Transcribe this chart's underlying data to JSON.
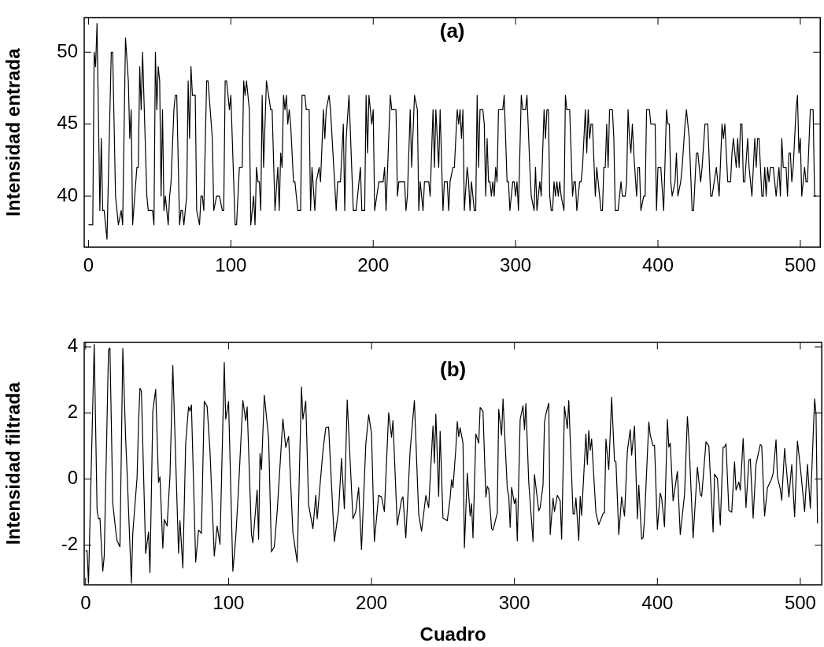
{
  "chart_data": [
    {
      "type": "line",
      "title": "(a)",
      "ylabel": "Intensidad entrada",
      "color": "#000000",
      "x": [
        0,
        3,
        4,
        5,
        6,
        8,
        9,
        10,
        11,
        13,
        16,
        17,
        19,
        21,
        23,
        24,
        26,
        28,
        29,
        30,
        31,
        34,
        35,
        36,
        37,
        38,
        41,
        42,
        45,
        46,
        47,
        48,
        49,
        50,
        51,
        52,
        53,
        54,
        56,
        57,
        58,
        60,
        61,
        62,
        64,
        65,
        66,
        67,
        69,
        70,
        71,
        72,
        73,
        75,
        76,
        78,
        79,
        80,
        81,
        83,
        84,
        87,
        88,
        90,
        92,
        94,
        95,
        96,
        97,
        99,
        100,
        103,
        104,
        106,
        108,
        109,
        110,
        111,
        113,
        114,
        116,
        117,
        118,
        119,
        120,
        121,
        122,
        123,
        125,
        128,
        129,
        131,
        133,
        134,
        135,
        136,
        137,
        138,
        139,
        140,
        141,
        142,
        144,
        145,
        147,
        149,
        150,
        152,
        153,
        155,
        156,
        157,
        159,
        160,
        162,
        163,
        165,
        166,
        167,
        169,
        170,
        174,
        175,
        177,
        179,
        180,
        181,
        183,
        186,
        188,
        190,
        191,
        192,
        194,
        195,
        196,
        197,
        198,
        199,
        200,
        201,
        204,
        207,
        208,
        209,
        212,
        213,
        216,
        217,
        218,
        222,
        223,
        224,
        226,
        227,
        229,
        231,
        232,
        233,
        235,
        236,
        239,
        240,
        242,
        243,
        244,
        245,
        246,
        247,
        249,
        250,
        252,
        253,
        254,
        256,
        257,
        259,
        260,
        261,
        262,
        263,
        264,
        266,
        267,
        268,
        269,
        271,
        272,
        273,
        274,
        275,
        277,
        278,
        279,
        280,
        281,
        282,
        283,
        284,
        285,
        286,
        287,
        288,
        291,
        292,
        294,
        295,
        296,
        298,
        299,
        300,
        301,
        302,
        304,
        305,
        307,
        308,
        310,
        311,
        313,
        314,
        315,
        317,
        318,
        320,
        321,
        322,
        323,
        324,
        325,
        326,
        327,
        328,
        329,
        330,
        331,
        332,
        334,
        335,
        336,
        338,
        340,
        341,
        342,
        343,
        345,
        346,
        347,
        349,
        350,
        351,
        352,
        353,
        354,
        356,
        357,
        358,
        360,
        361,
        362,
        363,
        364,
        365,
        366,
        368,
        369,
        370,
        372,
        374,
        375,
        377,
        378,
        379,
        380,
        381,
        382,
        383,
        385,
        386,
        387,
        388,
        390,
        391,
        392,
        394,
        395,
        398,
        399,
        400,
        402,
        404,
        406,
        407,
        408,
        409,
        410,
        412,
        413,
        414,
        416,
        417,
        419,
        420,
        422,
        424,
        425,
        427,
        428,
        430,
        431,
        433,
        435,
        437,
        438,
        441,
        443,
        445,
        446,
        447,
        448,
        449,
        451,
        452,
        453,
        455,
        456,
        457,
        458,
        459,
        460,
        461,
        463,
        464,
        466,
        468,
        469,
        470,
        471,
        473,
        474,
        475,
        476,
        477,
        478,
        479,
        481,
        482,
        483,
        485,
        486,
        487,
        488,
        490,
        491,
        492,
        493,
        494,
        495,
        497,
        498,
        499,
        500,
        501,
        502,
        503,
        504,
        505,
        507,
        509,
        510,
        511
      ],
      "values": [
        38,
        38,
        50,
        49,
        52,
        39,
        44,
        39,
        39,
        37,
        50,
        50,
        40,
        38,
        39,
        38,
        51,
        48,
        44,
        46,
        38,
        42,
        42,
        49,
        46,
        50,
        40,
        39,
        39,
        38,
        50,
        46,
        49,
        48,
        40,
        46,
        39,
        40,
        38,
        40,
        41,
        46,
        47,
        47,
        38,
        39,
        39,
        38,
        40,
        48,
        44,
        49,
        47,
        47,
        39,
        38,
        40,
        40,
        39,
        48,
        48,
        44,
        39,
        40,
        40,
        39,
        39,
        48,
        48,
        46,
        47,
        38,
        38,
        42,
        42,
        48,
        47,
        48,
        46,
        38,
        40,
        38,
        42,
        41,
        41,
        39,
        47,
        42,
        48,
        46,
        46,
        39,
        42,
        39,
        43,
        42,
        47,
        46,
        47,
        45,
        46,
        45,
        41,
        41,
        39,
        39,
        47,
        47,
        46,
        46,
        39,
        42,
        39,
        41,
        42,
        41,
        46,
        44,
        46,
        47,
        46,
        39,
        41,
        41,
        45,
        39,
        44,
        47,
        39,
        39,
        41,
        42,
        39,
        39,
        47,
        43,
        47,
        46,
        45,
        46,
        39,
        41,
        41,
        42,
        39,
        47,
        46,
        46,
        40,
        41,
        41,
        39,
        40,
        46,
        42,
        47,
        46,
        39,
        41,
        39,
        41,
        41,
        40,
        46,
        42,
        46,
        44,
        42,
        46,
        39,
        41,
        41,
        39,
        41,
        42,
        42,
        46,
        45,
        46,
        44,
        46,
        39,
        42,
        41,
        39,
        41,
        39,
        39,
        47,
        42,
        46,
        46,
        45,
        40,
        44,
        41,
        41,
        40,
        41,
        40,
        42,
        41,
        46,
        46,
        47,
        41,
        41,
        39,
        41,
        41,
        40,
        41,
        39,
        47,
        46,
        46,
        47,
        42,
        40,
        39,
        42,
        39,
        41,
        40,
        46,
        44,
        46,
        46,
        40,
        39,
        39,
        41,
        40,
        41,
        40,
        41,
        40,
        39,
        47,
        46,
        46,
        40,
        41,
        41,
        39,
        41,
        41,
        42,
        46,
        43,
        46,
        44,
        45,
        45,
        40,
        42,
        41,
        39,
        39,
        42,
        42,
        45,
        42,
        46,
        46,
        44,
        39,
        39,
        41,
        40,
        40,
        41,
        46,
        44,
        43,
        45,
        43,
        40,
        42,
        42,
        39,
        40,
        40,
        46,
        46,
        45,
        45,
        39,
        42,
        42,
        39,
        46,
        45,
        45,
        41,
        40,
        41,
        43,
        40,
        41,
        42,
        45,
        46,
        44,
        39,
        39,
        43,
        43,
        41,
        42,
        45,
        45,
        40,
        40,
        42,
        40,
        45,
        44,
        45,
        43,
        41,
        41,
        43,
        44,
        42,
        44,
        42,
        45,
        45,
        41,
        41,
        44,
        42,
        40,
        44,
        42,
        44,
        44,
        40,
        40,
        42,
        40,
        42,
        41,
        42,
        42,
        41,
        40,
        42,
        40,
        44,
        42,
        42,
        40,
        43,
        43,
        41,
        42,
        46,
        47,
        43,
        44,
        40,
        41,
        42,
        41,
        41,
        46,
        46,
        40,
        40
      ],
      "xlim": [
        -3,
        514
      ],
      "ylim": [
        36.45,
        52.4
      ],
      "xticks": [
        0,
        100,
        200,
        300,
        400,
        500
      ],
      "yticks": [
        40,
        45,
        50
      ]
    },
    {
      "type": "line",
      "title": "(b)",
      "ylabel": "Intensidad filtrada",
      "xlabel": "Cuadro",
      "color": "#000000",
      "x": [
        0,
        1,
        2,
        6,
        8,
        9,
        10,
        12,
        13,
        16,
        17,
        19,
        21,
        22,
        24,
        26,
        28,
        29,
        32,
        33,
        36,
        37,
        38,
        39,
        42,
        44,
        45,
        47,
        49,
        51,
        52,
        54,
        55,
        57,
        59,
        61,
        65,
        66,
        68,
        70,
        72,
        73,
        74,
        77,
        79,
        81,
        83,
        85,
        87,
        90,
        92,
        94,
        97,
        98,
        100,
        103,
        105,
        107,
        110,
        112,
        113,
        116,
        117,
        120,
        121,
        122,
        123,
        125,
        128,
        130,
        132,
        134,
        138,
        140,
        142,
        145,
        148,
        151,
        152,
        154,
        156,
        159,
        161,
        162,
        166,
        168,
        170,
        174,
        177,
        179,
        181,
        183,
        187,
        189,
        191,
        193,
        196,
        198,
        200,
        202,
        205,
        207,
        209,
        212,
        214,
        215,
        218,
        221,
        222,
        224,
        227,
        230,
        233,
        235,
        238,
        240,
        243,
        244,
        245,
        247,
        248,
        250,
        253,
        255,
        256,
        257,
        259,
        260,
        261,
        262,
        264,
        265,
        267,
        269,
        270,
        271,
        273,
        275,
        276,
        278,
        280,
        281,
        282,
        284,
        285,
        288,
        289,
        291,
        292,
        295,
        296,
        297,
        298,
        300,
        301,
        302,
        304,
        306,
        307,
        308,
        310,
        313,
        314,
        317,
        318,
        320,
        321,
        322,
        324,
        325,
        327,
        328,
        330,
        332,
        333,
        335,
        337,
        338,
        341,
        342,
        343,
        345,
        346,
        347,
        350,
        351,
        352,
        353,
        354,
        357,
        359,
        362,
        363,
        364,
        366,
        368,
        370,
        371,
        373,
        375,
        377,
        379,
        381,
        382,
        384,
        386,
        387,
        389,
        390,
        391,
        394,
        395,
        397,
        398,
        400,
        402,
        403,
        405,
        407,
        408,
        409,
        411,
        414,
        416,
        419,
        421,
        422,
        425,
        426,
        428,
        430,
        431,
        434,
        436,
        439,
        440,
        442,
        444,
        446,
        447,
        448,
        450,
        452,
        454,
        455,
        457,
        458,
        460,
        462,
        464,
        465,
        467,
        469,
        470,
        472,
        473,
        475,
        477,
        480,
        481,
        483,
        484,
        486,
        487,
        489,
        492,
        494,
        496,
        498,
        500,
        503,
        505,
        507,
        510,
        511,
        512
      ],
      "values": [
        -2.17,
        -2.17,
        -3.15,
        4.08,
        -0.94,
        -1.2,
        -1.18,
        -2.79,
        -2.33,
        3.92,
        3.97,
        -0.74,
        -1.54,
        -1.86,
        -2.05,
        3.96,
        1.21,
        0.21,
        -3.15,
        -1.62,
        0.06,
        1.69,
        2.75,
        2.67,
        -2.25,
        -1.6,
        -2.83,
        2.05,
        2.72,
        -0.1,
        0.07,
        -2.09,
        -1.22,
        -1.42,
        0.1,
        3.44,
        -2.24,
        -1.26,
        -2.69,
        1.09,
        2.19,
        2.06,
        2.25,
        -2.51,
        -1.54,
        -1.64,
        2.36,
        2.2,
        0.85,
        -2.33,
        -1.42,
        -1.97,
        3.53,
        1.81,
        2.35,
        -2.79,
        -1.78,
        -0.26,
        2.38,
        1.77,
        2.19,
        -1.66,
        -1.93,
        -0.33,
        -1.82,
        0.77,
        0.29,
        2.54,
        1.25,
        -2.2,
        -2.05,
        -0.98,
        1.82,
        0.96,
        1.29,
        -1.62,
        -2.51,
        2.79,
        1.81,
        2.36,
        -0.78,
        -1.5,
        -0.49,
        -1.2,
        0.85,
        1.55,
        1.58,
        -1.89,
        -0.94,
        0.63,
        -0.9,
        2.4,
        -1.2,
        -0.98,
        -0.26,
        -2.13,
        1.05,
        1.95,
        1.39,
        -1.89,
        -0.49,
        -0.54,
        -0.98,
        2.01,
        1.27,
        1.77,
        -1.39,
        -0.62,
        -0.54,
        -1.78,
        0.85,
        2.38,
        -1.06,
        -1.58,
        -0.5,
        -0.86,
        1.61,
        0.49,
        1.97,
        -0.52,
        1.45,
        -1.18,
        -1.26,
        -0.58,
        -0.02,
        -0.26,
        0.93,
        1.74,
        1.29,
        1.55,
        1.09,
        -2.08,
        0.18,
        -1.12,
        -0.74,
        -1.78,
        1.37,
        1.09,
        2.17,
        2.05,
        -0.54,
        -0.22,
        -0.3,
        -1.5,
        -1.54,
        -1.02,
        2.11,
        1.33,
        2.43,
        -0.3,
        -0.5,
        -1.46,
        -0.25,
        -0.74,
        -0.58,
        -1.87,
        1.81,
        2.22,
        1.5,
        2.29,
        -0.1,
        -1.89,
        0.14,
        -0.96,
        -0.86,
        -0.18,
        1.71,
        1.97,
        2.3,
        -1.68,
        -0.58,
        -0.98,
        -0.49,
        -0.66,
        -1.82,
        2.2,
        1.53,
        2.38,
        -1.04,
        -1.06,
        -0.57,
        -1.86,
        -0.52,
        -1.1,
        1.37,
        0.44,
        1.47,
        0.87,
        1.21,
        -1.02,
        -1.38,
        -1.04,
        -1.02,
        1.21,
        0.29,
        2.48,
        0.55,
        0.53,
        -1.68,
        -0.54,
        -1.12,
        0.85,
        1.5,
        0.73,
        1.61,
        -1.2,
        -0.18,
        -1.82,
        -1.78,
        -1.22,
        1.73,
        1.33,
        1.01,
        1.03,
        -1.52,
        -0.42,
        -0.58,
        -1.44,
        1.81,
        0.97,
        1.09,
        -0.66,
        0.23,
        -1.68,
        -0.46,
        1.89,
        1.25,
        -1.78,
        -1.06,
        0.36,
        -0.46,
        -0.52,
        1.13,
        1.01,
        -1.6,
        0.15,
        0.02,
        -1.39,
        0.97,
        0.97,
        1.07,
        -0.94,
        -1.0,
        0.52,
        -0.33,
        -0.09,
        -0.34,
        1.23,
        -0.86,
        0.57,
        0.61,
        -1.18,
        0.45,
        0.65,
        1.05,
        1.01,
        -1.12,
        -0.26,
        0.02,
        0.18,
        1.19,
        0.06,
        -0.3,
        -0.64,
        0.93,
        -0.54,
        0.44,
        -1.14,
        1.15,
        0.37,
        -0.98,
        0.45,
        -0.88,
        2.43,
        1.97,
        -1.34
      ],
      "xlim": [
        -1,
        515
      ],
      "ylim": [
        -3.2,
        4.14
      ],
      "xticks": [
        0,
        100,
        200,
        300,
        400,
        500
      ],
      "yticks": [
        -2,
        0,
        2,
        4
      ]
    }
  ]
}
